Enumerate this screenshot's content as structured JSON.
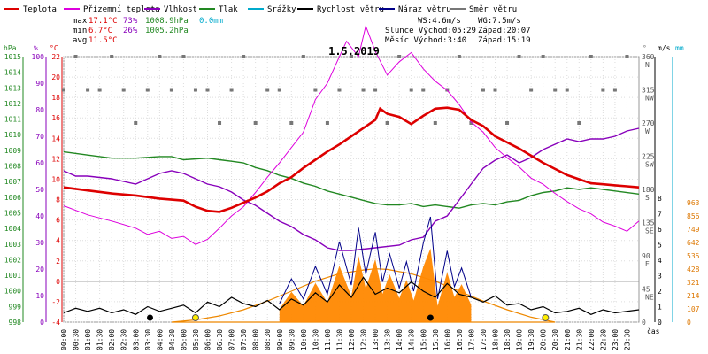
{
  "chart_data": {
    "type": "line",
    "title": "1.5.2019",
    "legend": [
      {
        "name": "Teplota",
        "color": "#dd0000"
      },
      {
        "name": "Přízemní teplota",
        "color": "#dd00dd"
      },
      {
        "name": "Vlhkost",
        "color": "#8800bb"
      },
      {
        "name": "Tlak",
        "color": "#228822"
      },
      {
        "name": "Srážky",
        "color": "#00aacc"
      },
      {
        "name": "Rychlost větru",
        "color": "#000000"
      },
      {
        "name": "Náraz větru",
        "color": "#000088"
      },
      {
        "name": "Směr větru",
        "color": "#777777"
      }
    ],
    "stats": {
      "max_label": "max",
      "min_label": "min",
      "avg_label": "avg",
      "max_temp": "17.1°C",
      "max_hum": "73%",
      "max_press": "1008.9hPa",
      "max_rain": "0.0mm",
      "min_temp": "6.7°C",
      "min_hum": "26%",
      "min_press": "1005.2hPa",
      "avg_temp": "11.5°C",
      "ws": "WS:4.6m/s",
      "wg": "WG:7.5m/s",
      "sun": "Slunce Východ:05:29",
      "sun_set": "Západ:20:07",
      "moon": "Měsíc  Východ:3:40",
      "moon_set": "Západ:15:19"
    },
    "axes": {
      "hpa_unit": "hPa",
      "pct_unit": "%",
      "temp_unit": "°C",
      "dir_unit": "°",
      "ms_unit": "m/s",
      "mm_unit": "mm",
      "time_unit": "čas",
      "hpa_ticks": [
        "1015",
        "1014",
        "1013",
        "1012",
        "1011",
        "1010",
        "1009",
        "1008",
        "1007",
        "1006",
        "1005",
        "1004",
        "1003",
        "1002",
        "1001",
        "1000",
        "999",
        "998"
      ],
      "pct_ticks": [
        "100",
        "90",
        "80",
        "70",
        "60",
        "50",
        "40",
        "30",
        "20",
        "10",
        "0"
      ],
      "temp_ticks": [
        "22",
        "20",
        "18",
        "16",
        "14",
        "12",
        "10",
        "8",
        "6",
        "4",
        "2",
        "0",
        "-2",
        "-4"
      ],
      "dir_ticks": [
        {
          "deg": "360",
          "card": "N",
          "deg_value": 360
        },
        {
          "deg": "315",
          "card": "NW",
          "deg_value": 315
        },
        {
          "deg": "270",
          "card": "W",
          "deg_value": 270
        },
        {
          "deg": "225",
          "card": "SW",
          "deg_value": 225
        },
        {
          "deg": "180",
          "card": "S",
          "deg_value": 180
        },
        {
          "deg": "135",
          "card": "SE",
          "deg_value": 135
        },
        {
          "deg": "90",
          "card": "E",
          "deg_value": 90
        },
        {
          "deg": "45",
          "card": "NE",
          "deg_value": 45
        },
        {
          "deg": "0",
          "card": "",
          "deg_value": 0
        }
      ],
      "ms_ticks": [
        "8",
        "7",
        "6",
        "5",
        "4",
        "3",
        "2",
        "1",
        "0"
      ],
      "mm_ticks": [
        "963",
        "856",
        "749",
        "642",
        "535",
        "428",
        "321",
        "214",
        "107",
        "0"
      ],
      "time_ticks": [
        "00:00",
        "00:30",
        "01:00",
        "01:30",
        "02:00",
        "02:30",
        "03:00",
        "03:30",
        "04:00",
        "04:30",
        "05:00",
        "05:30",
        "06:00",
        "06:30",
        "07:00",
        "07:30",
        "08:00",
        "08:30",
        "09:00",
        "09:30",
        "10:00",
        "10:30",
        "11:00",
        "11:30",
        "12:00",
        "12:30",
        "13:00",
        "13:30",
        "14:00",
        "14:30",
        "15:00",
        "15:30",
        "16:00",
        "16:30",
        "17:00",
        "17:30",
        "18:00",
        "18:30",
        "19:00",
        "19:30",
        "20:00",
        "20:30",
        "21:00",
        "21:30",
        "22:00",
        "22:30",
        "23:00",
        "23:30"
      ]
    },
    "ranges": {
      "hours": [
        0,
        24
      ],
      "temp": [
        -4,
        22
      ],
      "humidity": [
        0,
        100
      ],
      "pressure": [
        998,
        1015
      ],
      "wind": [
        0,
        8
      ],
      "direction": [
        0,
        360
      ],
      "solar": [
        0,
        963
      ]
    },
    "temperature": [
      [
        0,
        9.2
      ],
      [
        1,
        8.9
      ],
      [
        2,
        8.6
      ],
      [
        3,
        8.4
      ],
      [
        4,
        8.1
      ],
      [
        5,
        7.9
      ],
      [
        5.5,
        7.3
      ],
      [
        6,
        6.9
      ],
      [
        6.5,
        6.8
      ],
      [
        7,
        7.2
      ],
      [
        7.5,
        7.7
      ],
      [
        8,
        8.2
      ],
      [
        8.5,
        8.8
      ],
      [
        9,
        9.6
      ],
      [
        9.5,
        10.2
      ],
      [
        10,
        11.1
      ],
      [
        10.5,
        11.9
      ],
      [
        11,
        12.7
      ],
      [
        11.5,
        13.4
      ],
      [
        12,
        14.2
      ],
      [
        12.5,
        15
      ],
      [
        13,
        15.8
      ],
      [
        13.2,
        16.9
      ],
      [
        13.5,
        16.4
      ],
      [
        14,
        16.1
      ],
      [
        14.5,
        15.4
      ],
      [
        15,
        16.2
      ],
      [
        15.5,
        16.9
      ],
      [
        16,
        17
      ],
      [
        16.5,
        16.8
      ],
      [
        17,
        15.8
      ],
      [
        17.5,
        15.2
      ],
      [
        18,
        14.2
      ],
      [
        18.5,
        13.6
      ],
      [
        19,
        13
      ],
      [
        19.5,
        12.3
      ],
      [
        20,
        11.6
      ],
      [
        20.5,
        11
      ],
      [
        21,
        10.4
      ],
      [
        21.5,
        10
      ],
      [
        22,
        9.6
      ],
      [
        22.5,
        9.5
      ],
      [
        23,
        9.4
      ],
      [
        23.5,
        9.3
      ],
      [
        24,
        9.2
      ]
    ],
    "ground_temp": [
      [
        0,
        7.4
      ],
      [
        1,
        6.5
      ],
      [
        2,
        5.9
      ],
      [
        3,
        5.2
      ],
      [
        3.5,
        4.6
      ],
      [
        4,
        4.9
      ],
      [
        4.5,
        4.2
      ],
      [
        5,
        4.4
      ],
      [
        5.5,
        3.6
      ],
      [
        6,
        4.1
      ],
      [
        6.5,
        5.2
      ],
      [
        7,
        6.4
      ],
      [
        7.5,
        7.3
      ],
      [
        8,
        8.7
      ],
      [
        8.5,
        10.2
      ],
      [
        9,
        11.6
      ],
      [
        9.5,
        13.1
      ],
      [
        10,
        14.6
      ],
      [
        10.5,
        17.8
      ],
      [
        11,
        19.4
      ],
      [
        11.5,
        22
      ],
      [
        11.8,
        23.5
      ],
      [
        12.3,
        22
      ],
      [
        12.6,
        25
      ],
      [
        13,
        22.5
      ],
      [
        13.5,
        20.2
      ],
      [
        14,
        21.5
      ],
      [
        14.5,
        22.4
      ],
      [
        15,
        20.8
      ],
      [
        15.5,
        19.6
      ],
      [
        16,
        18.7
      ],
      [
        16.5,
        17.3
      ],
      [
        17,
        15.6
      ],
      [
        17.5,
        14.6
      ],
      [
        18,
        13.1
      ],
      [
        18.5,
        12.1
      ],
      [
        19,
        11.2
      ],
      [
        19.5,
        10.1
      ],
      [
        20,
        9.5
      ],
      [
        20.5,
        8.6
      ],
      [
        21,
        7.8
      ],
      [
        21.5,
        7.1
      ],
      [
        22,
        6.6
      ],
      [
        22.5,
        5.8
      ],
      [
        23,
        5.4
      ],
      [
        23.5,
        4.9
      ],
      [
        24,
        5.9
      ]
    ],
    "humidity": [
      [
        0,
        57
      ],
      [
        0.5,
        55
      ],
      [
        1,
        55
      ],
      [
        2,
        54
      ],
      [
        3,
        52
      ],
      [
        4,
        56
      ],
      [
        4.5,
        57
      ],
      [
        5,
        56
      ],
      [
        5.5,
        54
      ],
      [
        6,
        52
      ],
      [
        6.5,
        51
      ],
      [
        7,
        49
      ],
      [
        7.5,
        46
      ],
      [
        8,
        44
      ],
      [
        8.5,
        41
      ],
      [
        9,
        38
      ],
      [
        9.5,
        36
      ],
      [
        10,
        33
      ],
      [
        10.5,
        31
      ],
      [
        11,
        28
      ],
      [
        11.5,
        27
      ],
      [
        12,
        27
      ],
      [
        13,
        28
      ],
      [
        14,
        29
      ],
      [
        14.5,
        31
      ],
      [
        15,
        32
      ],
      [
        15.5,
        38
      ],
      [
        16,
        40
      ],
      [
        16.5,
        46
      ],
      [
        17,
        52
      ],
      [
        17.5,
        58
      ],
      [
        18,
        61
      ],
      [
        18.5,
        63
      ],
      [
        19,
        60
      ],
      [
        19.5,
        62
      ],
      [
        20,
        65
      ],
      [
        20.5,
        67
      ],
      [
        21,
        69
      ],
      [
        21.5,
        68
      ],
      [
        22,
        69
      ],
      [
        22.5,
        69
      ],
      [
        23,
        70
      ],
      [
        23.5,
        72
      ],
      [
        24,
        73
      ]
    ],
    "pressure": [
      [
        0,
        1008.9
      ],
      [
        1,
        1008.7
      ],
      [
        2,
        1008.5
      ],
      [
        3,
        1008.5
      ],
      [
        4,
        1008.6
      ],
      [
        4.5,
        1008.6
      ],
      [
        5,
        1008.4
      ],
      [
        6,
        1008.5
      ],
      [
        6.5,
        1008.4
      ],
      [
        7,
        1008.3
      ],
      [
        7.5,
        1008.2
      ],
      [
        8,
        1007.9
      ],
      [
        8.5,
        1007.7
      ],
      [
        9,
        1007.4
      ],
      [
        9.5,
        1007.2
      ],
      [
        10,
        1006.9
      ],
      [
        10.5,
        1006.7
      ],
      [
        11,
        1006.4
      ],
      [
        11.5,
        1006.2
      ],
      [
        12,
        1006.0
      ],
      [
        12.5,
        1005.8
      ],
      [
        13,
        1005.6
      ],
      [
        13.5,
        1005.5
      ],
      [
        14,
        1005.5
      ],
      [
        14.5,
        1005.6
      ],
      [
        15,
        1005.4
      ],
      [
        15.5,
        1005.5
      ],
      [
        16,
        1005.4
      ],
      [
        16.5,
        1005.3
      ],
      [
        17,
        1005.5
      ],
      [
        17.5,
        1005.6
      ],
      [
        18,
        1005.5
      ],
      [
        18.5,
        1005.7
      ],
      [
        19,
        1005.8
      ],
      [
        19.5,
        1006.1
      ],
      [
        20,
        1006.3
      ],
      [
        20.5,
        1006.4
      ],
      [
        21,
        1006.6
      ],
      [
        21.5,
        1006.5
      ],
      [
        22,
        1006.6
      ],
      [
        22.5,
        1006.5
      ],
      [
        23,
        1006.4
      ],
      [
        24,
        1006.2
      ]
    ],
    "wind_speed": [
      [
        0,
        0.6
      ],
      [
        0.5,
        0.9
      ],
      [
        1,
        0.7
      ],
      [
        1.5,
        0.9
      ],
      [
        2,
        0.6
      ],
      [
        2.5,
        0.8
      ],
      [
        3,
        0.5
      ],
      [
        3.5,
        1.0
      ],
      [
        4,
        0.7
      ],
      [
        4.5,
        0.9
      ],
      [
        5,
        1.1
      ],
      [
        5.5,
        0.6
      ],
      [
        6,
        1.3
      ],
      [
        6.5,
        1.0
      ],
      [
        7,
        1.6
      ],
      [
        7.5,
        1.2
      ],
      [
        8,
        1.0
      ],
      [
        8.5,
        1.4
      ],
      [
        9,
        0.8
      ],
      [
        9.5,
        1.5
      ],
      [
        10,
        1.1
      ],
      [
        10.5,
        1.9
      ],
      [
        11,
        1.3
      ],
      [
        11.5,
        2.4
      ],
      [
        12,
        1.6
      ],
      [
        12.5,
        2.9
      ],
      [
        13,
        1.8
      ],
      [
        13.5,
        2.2
      ],
      [
        14,
        1.9
      ],
      [
        14.5,
        2.6
      ],
      [
        15,
        2.0
      ],
      [
        15.5,
        1.6
      ],
      [
        16,
        2.5
      ],
      [
        16.5,
        1.8
      ],
      [
        17,
        1.6
      ],
      [
        17.5,
        1.3
      ],
      [
        18,
        1.7
      ],
      [
        18.5,
        1.1
      ],
      [
        19,
        1.2
      ],
      [
        19.5,
        0.8
      ],
      [
        20,
        1.0
      ],
      [
        20.5,
        0.6
      ],
      [
        21,
        0.7
      ],
      [
        21.5,
        0.9
      ],
      [
        22,
        0.5
      ],
      [
        22.5,
        0.8
      ],
      [
        23,
        0.6
      ],
      [
        24,
        0.8
      ]
    ],
    "wind_gust": [
      [
        9,
        1.2
      ],
      [
        9.5,
        2.8
      ],
      [
        10,
        1.5
      ],
      [
        10.5,
        3.6
      ],
      [
        11,
        1.8
      ],
      [
        11.5,
        5.2
      ],
      [
        12,
        2.4
      ],
      [
        12.3,
        6.1
      ],
      [
        12.6,
        3.1
      ],
      [
        13,
        5.8
      ],
      [
        13.3,
        2.6
      ],
      [
        13.6,
        4.4
      ],
      [
        14,
        2.2
      ],
      [
        14.3,
        3.9
      ],
      [
        14.6,
        2.0
      ],
      [
        15,
        5.1
      ],
      [
        15.3,
        6.8
      ],
      [
        15.6,
        1.5
      ],
      [
        16,
        4.6
      ],
      [
        16.3,
        2.3
      ],
      [
        16.6,
        3.5
      ],
      [
        17,
        1.6
      ]
    ],
    "solar_left": [
      [
        4.5,
        0
      ],
      [
        5.5,
        18
      ],
      [
        6.5,
        50
      ],
      [
        7.5,
        100
      ],
      [
        8.5,
        170
      ],
      [
        9.5,
        250
      ],
      [
        10.5,
        330
      ],
      [
        11.5,
        390
      ],
      [
        12.5,
        420
      ],
      [
        13,
        430
      ],
      [
        13.5,
        425
      ],
      [
        14.5,
        390
      ],
      [
        15.5,
        330
      ],
      [
        16.5,
        250
      ],
      [
        17.5,
        170
      ],
      [
        18.5,
        100
      ],
      [
        19.5,
        40
      ],
      [
        20.5,
        0
      ]
    ],
    "direction_hours": [
      0,
      0.5,
      1,
      1.5,
      2,
      2.5,
      3,
      3.5,
      4,
      4.5,
      5,
      5.5,
      6,
      6.5,
      7,
      7.5,
      8,
      8.5,
      9,
      9.5,
      10,
      10.5,
      11,
      11.5,
      12,
      12.5,
      13,
      13.5,
      14,
      14.5,
      15,
      15.5,
      16,
      16.5,
      17,
      17.5,
      18,
      18.5,
      19,
      19.5,
      20,
      20.5,
      21,
      21.5,
      22,
      22.5,
      23,
      23.5
    ],
    "direction_deg": [
      315,
      360,
      315,
      315,
      360,
      315,
      270,
      315,
      360,
      315,
      360,
      315,
      315,
      270,
      315,
      360,
      270,
      315,
      315,
      270,
      360,
      315,
      270,
      315,
      360,
      315,
      315,
      270,
      360,
      315,
      315,
      270,
      315,
      360,
      270,
      315,
      315,
      270,
      360,
      315,
      360,
      315,
      315,
      270,
      360,
      315,
      315,
      360
    ]
  }
}
